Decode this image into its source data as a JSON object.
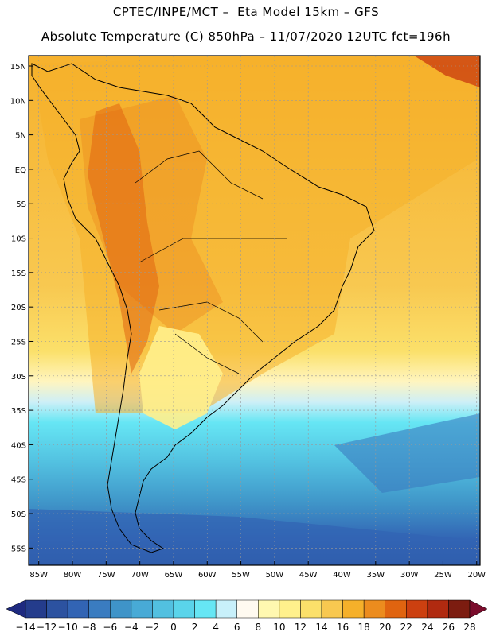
{
  "header": {
    "line1": "CPTEC/INPE/MCT –  Eta Model 15km – GFS",
    "line2": "Absolute Temperature (C) 850hPa – 11/07/2020 12UTC fct=196h"
  },
  "map": {
    "lat_labels": [
      "15N",
      "10N",
      "5N",
      "EQ",
      "5S",
      "10S",
      "15S",
      "20S",
      "25S",
      "30S",
      "35S",
      "40S",
      "45S",
      "50S",
      "55S"
    ],
    "lon_labels": [
      "85W",
      "80W",
      "75W",
      "70W",
      "65W",
      "60W",
      "55W",
      "50W",
      "45W",
      "40W",
      "35W",
      "30W",
      "25W",
      "20W"
    ],
    "lat_range": [
      -57.5,
      16.5
    ],
    "lon_range": [
      -86.5,
      -19.5
    ],
    "grid": true
  },
  "colorbar": {
    "labels": [
      "-14",
      "-12",
      "-10",
      "-8",
      "-6",
      "-4",
      "-2",
      "0",
      "2",
      "4",
      "6",
      "8",
      "10",
      "12",
      "14",
      "16",
      "18",
      "20",
      "22",
      "24",
      "26",
      "28"
    ],
    "colors": [
      "#243c8c",
      "#2c52a0",
      "#3264b4",
      "#3a7cc0",
      "#3f94c8",
      "#48aad6",
      "#52c0e0",
      "#5ad4ea",
      "#66e6f4",
      "#c8f0fa",
      "#fffaf0",
      "#fff8b0",
      "#fff08c",
      "#fbe06a",
      "#f8c850",
      "#f5b02a",
      "#ec8c1e",
      "#e06410",
      "#cc4010",
      "#b02a10",
      "#7c1c10"
    ],
    "end_low": "#1e2a80",
    "end_high": "#7a0c2c"
  }
}
